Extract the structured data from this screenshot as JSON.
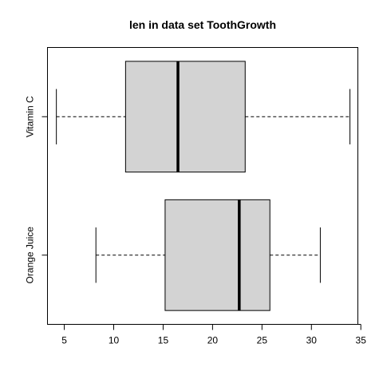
{
  "chart_data": {
    "type": "boxplot",
    "orientation": "horizontal",
    "title": "len in data set ToothGrowth",
    "xlabel": "",
    "ylabel": "",
    "xlim": [
      3.3,
      34.7
    ],
    "x_ticks": [
      5,
      10,
      15,
      20,
      25,
      30,
      35
    ],
    "categories": [
      "Vitamin C",
      "Orange Juice"
    ],
    "boxes": [
      {
        "category": "Vitamin C",
        "min": 4.2,
        "q1": 11.2,
        "median": 16.5,
        "q3": 23.3,
        "max": 33.9
      },
      {
        "category": "Orange Juice",
        "min": 8.2,
        "q1": 15.2,
        "median": 22.7,
        "q3": 25.8,
        "max": 30.9
      }
    ],
    "box_fill": "#d3d3d3",
    "grid": false,
    "legend": "none"
  }
}
